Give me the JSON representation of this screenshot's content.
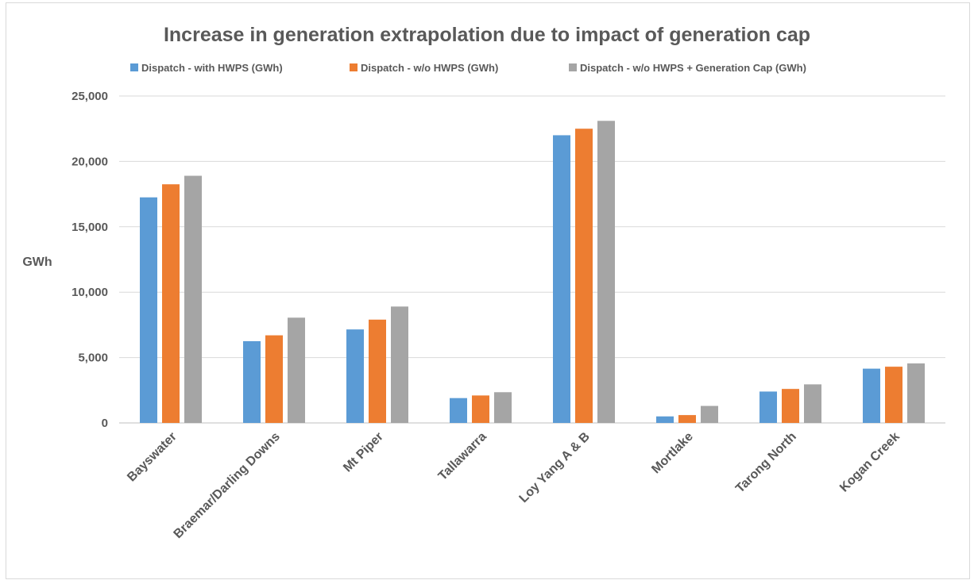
{
  "chart_data": {
    "type": "bar",
    "title": "Increase in generation extrapolation due to impact of generation cap",
    "xlabel": "",
    "ylabel": "GWh",
    "ylim": [
      0,
      25000
    ],
    "yticks": [
      0,
      5000,
      10000,
      15000,
      20000,
      25000
    ],
    "ytick_labels": [
      "0",
      "5,000",
      "10,000",
      "15,000",
      "20,000",
      "25,000"
    ],
    "grid": true,
    "legend_position": "top",
    "categories": [
      "Bayswater",
      "Braemar/Darling Downs",
      "Mt Piper",
      "Tallawarra",
      "Loy Yang A & B",
      "Mortlake",
      "Tarong North",
      "Kogan Creek"
    ],
    "series": [
      {
        "name": "Dispatch - with HWPS (GWh)",
        "color": "#5b9bd5",
        "values": [
          17250,
          6250,
          7150,
          1900,
          22000,
          500,
          2400,
          4150
        ]
      },
      {
        "name": "Dispatch - w/o HWPS (GWh)",
        "color": "#ed7d31",
        "values": [
          18250,
          6700,
          7900,
          2100,
          22500,
          600,
          2600,
          4300
        ]
      },
      {
        "name": "Dispatch - w/o HWPS + Generation Cap (GWh)",
        "color": "#a5a5a5",
        "values": [
          18900,
          8050,
          8900,
          2350,
          23100,
          1300,
          2950,
          4550
        ]
      }
    ]
  }
}
